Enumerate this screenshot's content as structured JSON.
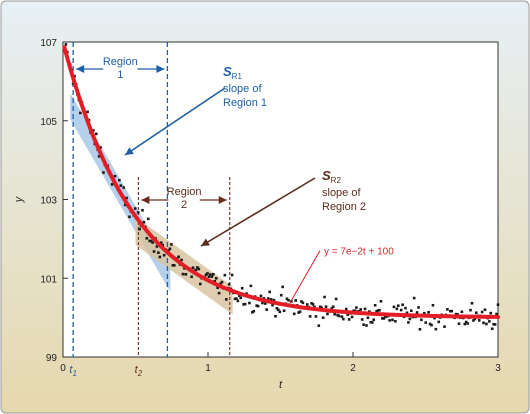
{
  "chart_data": {
    "type": "scatter",
    "xlabel": "t",
    "ylabel": "y",
    "xlim": [
      0,
      3
    ],
    "ylim": [
      99,
      107
    ],
    "x_ticks": [
      0,
      1,
      2,
      3
    ],
    "y_ticks": [
      99,
      101,
      103,
      105,
      107
    ],
    "fit_curve": {
      "label": "y = 7e−2t + 100",
      "a": 7,
      "b": -2,
      "c": 100,
      "color": "#e31e26"
    },
    "noise_sd": 0.16,
    "n_points": 300,
    "regions": [
      {
        "name": "Region 1",
        "line1": "Region",
        "line2": "1",
        "start": 0.07,
        "end": 0.72,
        "color": "#1f5fa6"
      },
      {
        "name": "Region 2",
        "line1": "Region",
        "line2": "2",
        "start": 0.52,
        "end": 1.15,
        "color": "#6b2c20"
      }
    ],
    "t_markers": [
      {
        "label": "t",
        "sub": "1",
        "x": 0.07,
        "color": "#1f5fa6"
      },
      {
        "label": "t",
        "sub": "2",
        "x": 0.52,
        "color": "#6b2c20"
      }
    ],
    "slope_annotations": [
      {
        "symbol": "S",
        "sub": "R1",
        "line1": "slope of",
        "line2": "Region 1",
        "color": "#1f5fa6"
      },
      {
        "symbol": "S",
        "sub": "R2",
        "line1": "slope of",
        "line2": "Region 2",
        "color": "#5a2d1c"
      }
    ],
    "colors": {
      "background_top": "#e7f0f5",
      "background_bottom": "#e6d8ad",
      "plot_bg": "#ffffff",
      "points": "#1a1a1a",
      "band1": "#a8c8e6",
      "band2": "#d9c4a2"
    }
  }
}
